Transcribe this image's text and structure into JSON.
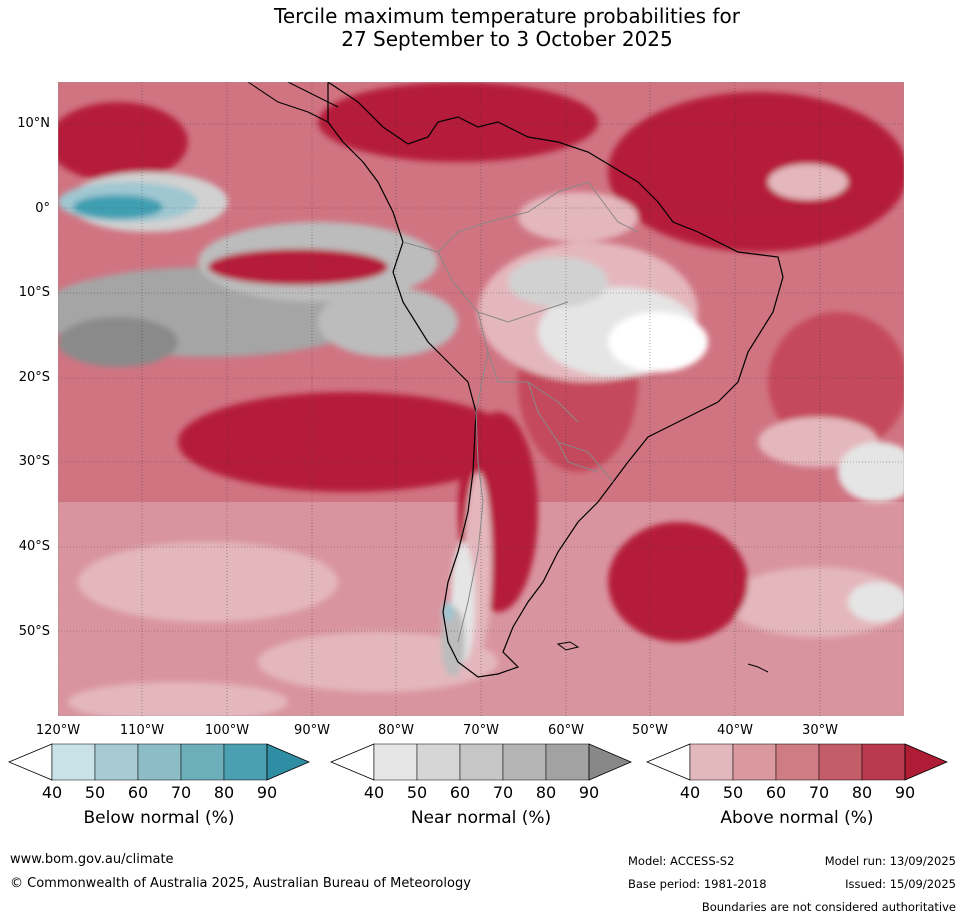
{
  "title": {
    "line1": "Tercile maximum temperature probabilities for",
    "line2": "27 September to 3 October 2025"
  },
  "map": {
    "lat_labels": [
      "10°N",
      "0°",
      "10°S",
      "20°S",
      "30°S",
      "40°S",
      "50°S"
    ],
    "lon_labels": [
      "120°W",
      "110°W",
      "100°W",
      "90°W",
      "80°W",
      "70°W",
      "60°W",
      "50°W",
      "40°W",
      "30°W"
    ],
    "colors": {
      "above_90": "#b51b3a",
      "above_80": "#c5495c",
      "above_70": "#d07482",
      "above_60": "#d9959f",
      "above_50": "#e4b7bd",
      "below_50": "#c7e0e6",
      "below_60": "#9fc7d1",
      "below_80": "#3f9fb2",
      "near_50": "#e5e5e5",
      "near_60": "#d1d1d1",
      "near_70": "#bcbcbc",
      "near_80": "#a5a5a5",
      "near_90": "#8a8a8a",
      "neutral": "#ffffff"
    }
  },
  "colorbars": {
    "tick_labels": [
      "40",
      "50",
      "60",
      "70",
      "80",
      "90"
    ],
    "below": {
      "title": "Below normal (%)",
      "colors": [
        "#ffffff",
        "#c9e2e8",
        "#a8cbd3",
        "#8cbcc5",
        "#6daebb",
        "#4aa0b0",
        "#2f8ea3"
      ]
    },
    "near": {
      "title": "Near normal (%)",
      "colors": [
        "#ffffff",
        "#e6e6e6",
        "#d6d6d6",
        "#c6c6c6",
        "#b4b4b4",
        "#a2a2a2",
        "#888888"
      ]
    },
    "above": {
      "title": "Above normal (%)",
      "colors": [
        "#ffffff",
        "#e2b8bd",
        "#d9999f",
        "#cf7c84",
        "#c55d68",
        "#b83a4c",
        "#ae1c35"
      ]
    }
  },
  "footer": {
    "website": "www.bom.gov.au/climate",
    "copyright": "© Commonwealth of Australia 2025, Australian Bureau of Meteorology",
    "model": "Model: ACCESS-S2",
    "model_run": "Model run: 13/09/2025",
    "base_period": "Base period: 1981-2018",
    "issued": "Issued: 15/09/2025",
    "disclaimer": "Boundaries are not considered authoritative"
  }
}
